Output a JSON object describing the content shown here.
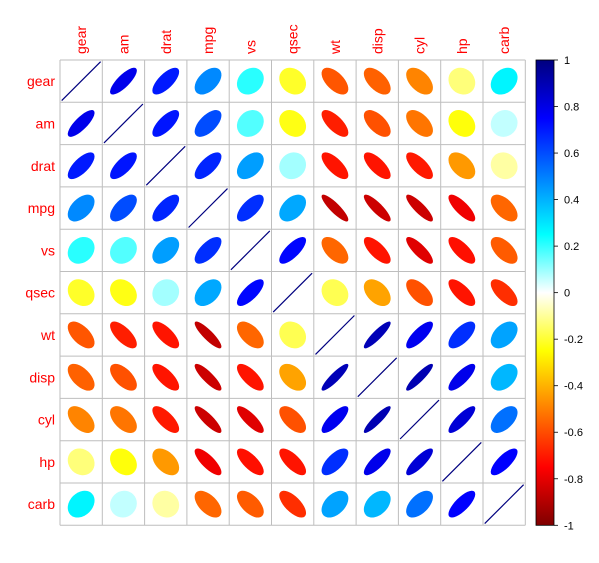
{
  "chart_data": {
    "type": "heatmap",
    "style": "ellipse",
    "variables": [
      "gear",
      "am",
      "drat",
      "mpg",
      "vs",
      "qsec",
      "wt",
      "disp",
      "cyl",
      "hp",
      "carb"
    ],
    "matrix": [
      [
        1,
        0.79,
        0.7,
        0.48,
        0.21,
        -0.21,
        -0.58,
        -0.56,
        -0.49,
        -0.13,
        0.27
      ],
      [
        0.79,
        1,
        0.71,
        0.6,
        0.17,
        -0.23,
        -0.69,
        -0.59,
        -0.52,
        -0.24,
        0.06
      ],
      [
        0.7,
        0.71,
        1,
        0.68,
        0.44,
        0.09,
        -0.71,
        -0.71,
        -0.7,
        -0.45,
        -0.09
      ],
      [
        0.48,
        0.6,
        0.68,
        1,
        0.66,
        0.42,
        -0.87,
        -0.85,
        -0.85,
        -0.78,
        -0.55
      ],
      [
        0.21,
        0.17,
        0.44,
        0.66,
        1,
        0.74,
        -0.55,
        -0.71,
        -0.81,
        -0.72,
        -0.57
      ],
      [
        -0.21,
        -0.23,
        0.09,
        0.42,
        0.74,
        1,
        -0.17,
        -0.43,
        -0.59,
        -0.71,
        -0.66
      ],
      [
        -0.58,
        -0.69,
        -0.71,
        -0.87,
        -0.55,
        -0.17,
        1,
        0.89,
        0.78,
        0.66,
        0.43
      ],
      [
        -0.56,
        -0.59,
        -0.71,
        -0.85,
        -0.71,
        -0.43,
        0.89,
        1,
        0.9,
        0.79,
        0.39
      ],
      [
        -0.49,
        -0.52,
        -0.7,
        -0.85,
        -0.81,
        -0.59,
        0.78,
        0.9,
        1,
        0.83,
        0.53
      ],
      [
        -0.13,
        -0.24,
        -0.45,
        -0.78,
        -0.72,
        -0.71,
        0.66,
        0.79,
        0.83,
        1,
        0.75
      ],
      [
        0.27,
        0.06,
        -0.09,
        -0.55,
        -0.57,
        -0.66,
        0.43,
        0.39,
        0.53,
        0.75,
        1
      ]
    ],
    "color_scale": {
      "range": [
        -1,
        1
      ],
      "ticks": [
        1,
        0.8,
        0.6,
        0.4,
        0.2,
        0,
        -0.2,
        -0.4,
        -0.6,
        -0.8,
        -1
      ],
      "tick_labels": [
        "1",
        "0.8",
        "0.6",
        "0.4",
        "0.2",
        "0",
        "-0.2",
        "-0.4",
        "-0.6",
        "-0.8",
        "-1"
      ],
      "colors_high_to_low": [
        "#00007F",
        "#0000FF",
        "#007FFF",
        "#00FFFF",
        "#FFFFFF",
        "#FFFF00",
        "#FF7F00",
        "#FF0000",
        "#7F0000"
      ]
    },
    "label_color": "#FF0000",
    "grid_color": "#BEBEBE",
    "diagonal_line_color": "#00007F"
  }
}
